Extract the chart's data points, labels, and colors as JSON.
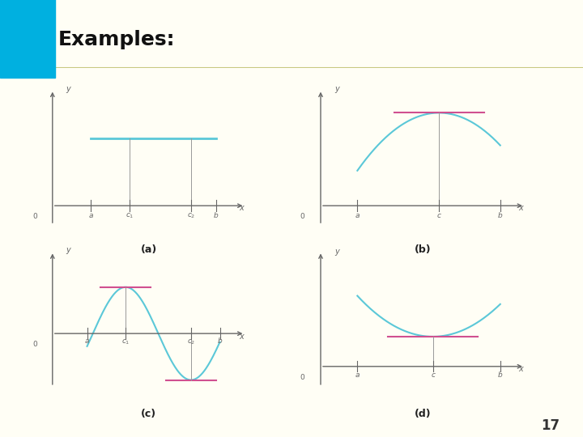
{
  "bg_color": "#fffef5",
  "header_bg": "#fdf5dc",
  "header_line_color": "#c8c880",
  "header_blue_color": "#00b0e0",
  "title_text": "Examples:",
  "title_color": "#111111",
  "cyan_color": "#5bc8d8",
  "pink_color": "#d05090",
  "gray_color": "#999999",
  "axis_color": "#666666",
  "page_number": "17",
  "subplot_labels": [
    "(a)",
    "(b)",
    "(c)",
    "(d)"
  ]
}
